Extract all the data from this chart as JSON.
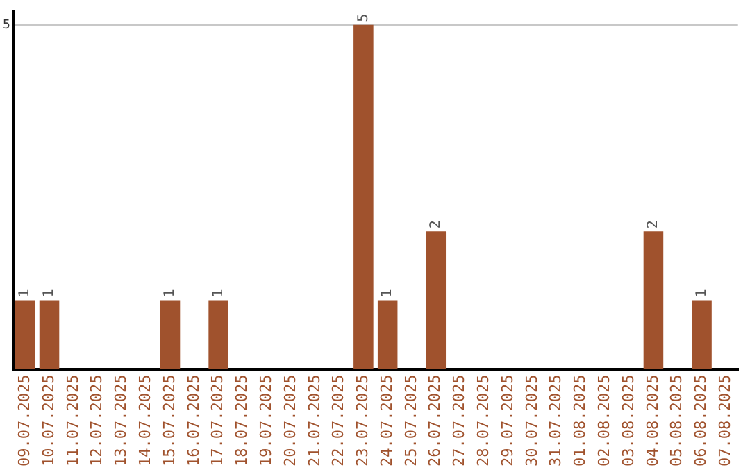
{
  "chart_data": {
    "type": "bar",
    "categories": [
      "09.07.2025",
      "10.07.2025",
      "11.07.2025",
      "12.07.2025",
      "13.07.2025",
      "14.07.2025",
      "15.07.2025",
      "16.07.2025",
      "17.07.2025",
      "18.07.2025",
      "19.07.2025",
      "20.07.2025",
      "21.07.2025",
      "22.07.2025",
      "23.07.2025",
      "24.07.2025",
      "25.07.2025",
      "26.07.2025",
      "27.07.2025",
      "28.07.2025",
      "29.07.2025",
      "30.07.2025",
      "31.07.2025",
      "01.08.2025",
      "02.08.2025",
      "03.08.2025",
      "04.08.2025",
      "05.08.2025",
      "06.08.2025",
      "07.08.2025"
    ],
    "values": [
      1,
      1,
      0,
      0,
      0,
      0,
      1,
      0,
      1,
      0,
      0,
      0,
      0,
      0,
      5,
      1,
      0,
      2,
      0,
      0,
      0,
      0,
      0,
      0,
      0,
      0,
      2,
      0,
      1,
      0
    ],
    "value_labels": [
      "1",
      "1",
      null,
      null,
      null,
      null,
      "1",
      null,
      "1",
      null,
      null,
      null,
      null,
      null,
      "5",
      "1",
      null,
      "2",
      null,
      null,
      null,
      null,
      null,
      null,
      null,
      null,
      "2",
      null,
      "1",
      null
    ],
    "color": "#a0522d",
    "ylim": [
      0,
      5.2
    ],
    "yticks": [
      5
    ],
    "grid": "y"
  }
}
